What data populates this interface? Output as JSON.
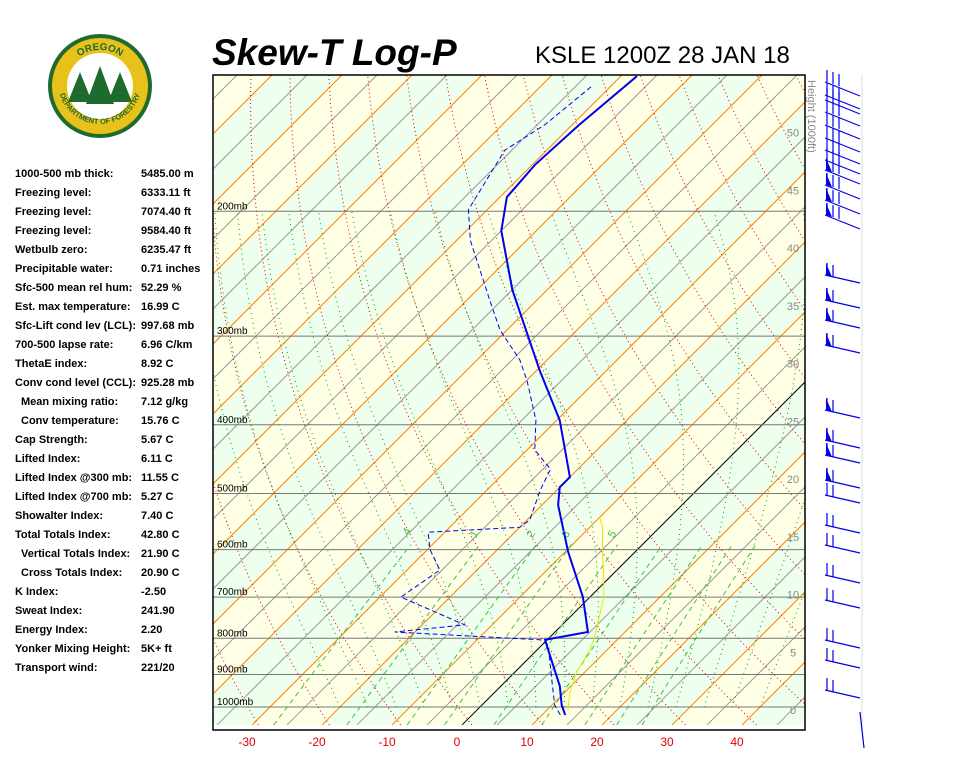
{
  "logo": {
    "text_top": "OREGON",
    "text_bottom": "DEPARTMENT OF FORESTRY"
  },
  "header": {
    "title": "Skew-T Log-P",
    "station": "KSLE 1200Z 28 JAN 18"
  },
  "stats": [
    {
      "label": "1000-500 mb thick:",
      "value": "5485.00 m"
    },
    {
      "label": "Freezing level:",
      "value": "6333.11 ft"
    },
    {
      "label": "Freezing level:",
      "value": "7074.40 ft"
    },
    {
      "label": "Freezing level:",
      "value": "9584.40 ft"
    },
    {
      "label": "Wetbulb zero:",
      "value": "6235.47 ft"
    },
    {
      "label": "Precipitable water:",
      "value": "0.71 inches"
    },
    {
      "label": "Sfc-500 mean rel hum:",
      "value": "52.29 %"
    },
    {
      "label": "Est. max temperature:",
      "value": "16.99 C"
    },
    {
      "label": "Sfc-Lift cond lev (LCL):",
      "value": "997.68 mb"
    },
    {
      "label": "700-500 lapse rate:",
      "value": "6.96 C/km"
    },
    {
      "label": "ThetaE index:",
      "value": "8.92 C"
    },
    {
      "label": "Conv cond level (CCL):",
      "value": "925.28 mb"
    },
    {
      "label": "Mean mixing ratio:",
      "value": "7.12 g/kg",
      "indent": true
    },
    {
      "label": "Conv temperature:",
      "value": "15.76 C",
      "indent": true
    },
    {
      "label": "Cap Strength:",
      "value": "5.67 C"
    },
    {
      "label": "Lifted Index:",
      "value": "6.11 C"
    },
    {
      "label": "Lifted Index @300 mb:",
      "value": "11.55 C"
    },
    {
      "label": "Lifted Index @700 mb:",
      "value": "5.27 C"
    },
    {
      "label": "Showalter Index:",
      "value": "7.40 C"
    },
    {
      "label": "Total Totals Index:",
      "value": "42.80 C"
    },
    {
      "label": "Vertical Totals Index:",
      "value": "21.90 C",
      "indent": true
    },
    {
      "label": "Cross Totals Index:",
      "value": "20.90 C",
      "indent": true
    },
    {
      "label": "K Index:",
      "value": "-2.50"
    },
    {
      "label": "Sweat Index:",
      "value": "241.90"
    },
    {
      "label": "Energy Index:",
      "value": "2.20"
    },
    {
      "label": "Yonker Mixing Height:",
      "value": "5K+ ft"
    },
    {
      "label": "Transport wind:",
      "value": "221/20"
    }
  ],
  "chart_data": {
    "type": "line",
    "title": "Skew-T Log-P",
    "x_ticks": [
      -30,
      -20,
      -10,
      0,
      10,
      20,
      30,
      40
    ],
    "pressure_labels": [
      "200mb",
      "300mb",
      "400mb",
      "500mb",
      "600mb",
      "700mb",
      "800mb",
      "900mb",
      "1000mb"
    ],
    "pressure_levels": [
      200,
      300,
      400,
      500,
      600,
      700,
      800,
      900,
      1000
    ],
    "height_axis_label": "Height (1000ft)",
    "height_ticks": [
      0,
      5,
      10,
      15,
      20,
      25,
      30,
      35,
      40,
      45,
      50
    ],
    "mixing_ratio_labels": [
      ".4",
      "1",
      "2",
      "3",
      "5"
    ],
    "mixing_ratio_values": [
      0.4,
      1,
      2,
      3,
      5
    ],
    "ylim_mb": [
      1030,
      128
    ],
    "series": [
      {
        "name": "Temperature",
        "color": "#0000ee",
        "style": "solid",
        "p": [
          1026,
          994,
          934,
          831,
          804,
          784,
          700,
          604,
          519,
          490,
          474,
          394,
          335,
          258,
          213,
          191,
          172,
          151,
          129
        ],
        "t": [
          13.3,
          11.4,
          8.4,
          1.6,
          -0.3,
          4.7,
          -1.0,
          -9.6,
          -17.7,
          -20,
          -20,
          -29.6,
          -39.6,
          -55,
          -65,
          -69,
          -69.6,
          -69,
          -67.7
        ]
      },
      {
        "name": "Dewpoint",
        "color": "#0000ee",
        "style": "dashed",
        "p": [
          1026,
          994,
          916,
          818,
          804,
          784,
          766,
          700,
          641,
          600,
          567,
          558,
          545,
          494,
          462,
          434,
          394,
          346,
          324,
          294,
          267,
          220,
          199,
          164,
          151,
          133
        ],
        "t": [
          12.6,
          10.4,
          6.4,
          0.9,
          -1,
          -22.9,
          -13.9,
          -27,
          -25.3,
          -29.6,
          -32.4,
          -20,
          -19.6,
          -22.4,
          -23.9,
          -28.9,
          -33,
          -40,
          -43.9,
          -51,
          -56.7,
          -68,
          -72.7,
          -76,
          -73.9,
          -72.7
        ]
      },
      {
        "name": "Parcel",
        "color": "#e8e800",
        "style": "solid",
        "p": [
          1010,
          960,
          900,
          830,
          800,
          700,
          640,
          600,
          560,
          540
        ],
        "t": [
          13,
          11,
          9,
          7.5,
          6.5,
          2,
          -2,
          -5,
          -8,
          -10
        ]
      }
    ]
  },
  "colors": {
    "temp": "#0000ee",
    "band_green": "#eeffee",
    "band_yellow": "#ffffe6",
    "isotherm": "#ff8000",
    "dry": "#e00000",
    "moist": "#00a000",
    "mix": "#40c040"
  }
}
